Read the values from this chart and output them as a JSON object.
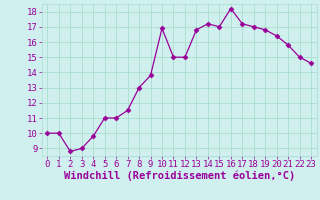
{
  "x": [
    0,
    1,
    2,
    3,
    4,
    5,
    6,
    7,
    8,
    9,
    10,
    11,
    12,
    13,
    14,
    15,
    16,
    17,
    18,
    19,
    20,
    21,
    22,
    23
  ],
  "y": [
    10.0,
    10.0,
    8.8,
    9.0,
    9.8,
    11.0,
    11.0,
    11.5,
    13.0,
    13.8,
    16.9,
    15.0,
    15.0,
    16.8,
    17.2,
    17.0,
    18.2,
    17.2,
    17.0,
    16.8,
    16.4,
    15.8,
    15.0,
    14.6
  ],
  "line_color": "#990099",
  "marker": "D",
  "marker_size": 2.5,
  "bg_color": "#d0f0f0",
  "grid_color": "#aaddcc",
  "xlabel": "Windchill (Refroidissement éolien,°C)",
  "xlabel_color": "#990099",
  "xlabel_fontsize": 7.5,
  "ylabel_ticks": [
    9,
    10,
    11,
    12,
    13,
    14,
    15,
    16,
    17,
    18
  ],
  "xlim": [
    -0.5,
    23.5
  ],
  "ylim": [
    8.5,
    18.5
  ],
  "tick_color": "#990099",
  "tick_fontsize": 6.5
}
